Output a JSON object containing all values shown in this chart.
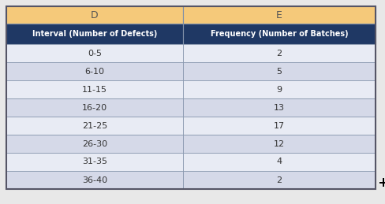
{
  "col_d_label": "D",
  "col_e_label": "E",
  "header1": "Interval (Number of Defects)",
  "header2": "Frequency (Number of Batches)",
  "intervals": [
    "0-5",
    "6-10",
    "11-15",
    "16-20",
    "21-25",
    "26-30",
    "31-35",
    "36-40"
  ],
  "frequencies": [
    2,
    5,
    9,
    13,
    17,
    12,
    4,
    2
  ],
  "col_header_bg": "#F5C97A",
  "col_header_text": "#555555",
  "row_header_bg": "#1F3864",
  "row_header_text": "#FFFFFF",
  "row_light_bg": "#E8EBF4",
  "row_dark_bg": "#D5D9E8",
  "data_text_color": "#333333",
  "border_color": "#8090A8",
  "table_border_color": "#555566",
  "fig_bg": "#E8E8E8",
  "outer_border_color": "#AAAAAA"
}
